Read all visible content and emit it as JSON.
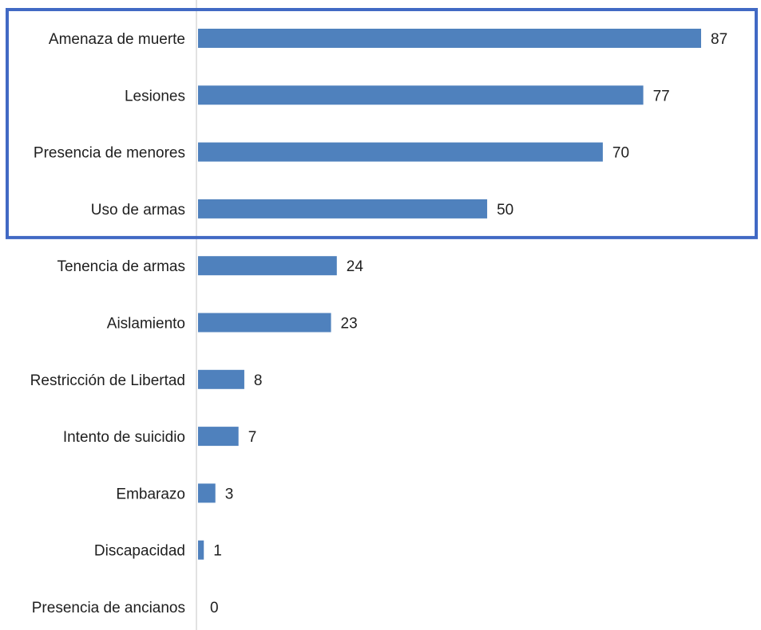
{
  "chart_data": {
    "type": "bar",
    "orientation": "horizontal",
    "categories": [
      "Amenaza de muerte",
      "Lesiones",
      "Presencia de menores",
      "Uso de armas",
      "Tenencia de armas",
      "Aislamiento",
      "Restricción de Libertad",
      "Intento de suicidio",
      "Embarazo",
      "Discapacidad",
      "Presencia de ancianos"
    ],
    "values": [
      87,
      77,
      70,
      50,
      24,
      23,
      8,
      7,
      3,
      1,
      0
    ],
    "data_labels": [
      "87",
      "77",
      "70",
      "50",
      "24",
      "23",
      "8",
      "7",
      "3",
      "1",
      "0"
    ],
    "highlighted_categories": [
      "Amenaza de muerte",
      "Lesiones",
      "Presencia de menores",
      "Uso de armas"
    ],
    "xlim": [
      0,
      87
    ],
    "grid": false,
    "legend": "none",
    "colors": {
      "bar": "#4f81bd",
      "highlight_box": "#4169c4",
      "axis": "#d9d9d9",
      "text": "#1f1f1f"
    }
  }
}
